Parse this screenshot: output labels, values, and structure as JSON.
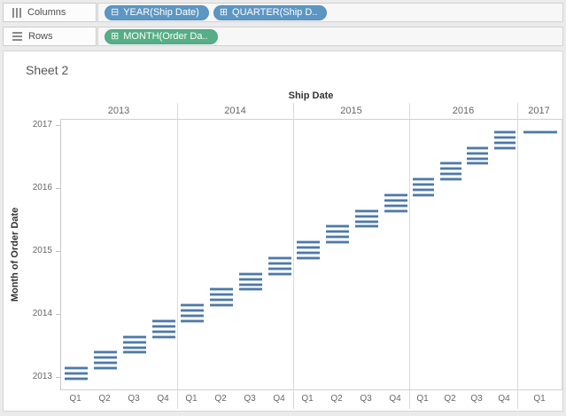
{
  "shelves": {
    "columns": {
      "label": "Columns",
      "pills": [
        {
          "label": "YEAR(Ship Date)",
          "icon_glyph": "⊟",
          "icon": "collapse-icon",
          "color": "#5d96c2"
        },
        {
          "label": "QUARTER(Ship D..",
          "icon_glyph": "⊞",
          "icon": "expand-icon",
          "color": "#5d96c2"
        }
      ]
    },
    "rows": {
      "label": "Rows",
      "pills": [
        {
          "label": "MONTH(Order Da..",
          "icon_glyph": "⊞",
          "icon": "expand-icon",
          "color": "#56ae87"
        }
      ]
    }
  },
  "sheet": {
    "title": "Sheet 2"
  },
  "chart_data": {
    "type": "gantt",
    "title": "Sheet 2",
    "col_axis_title": "Ship Date",
    "ylabel": "Month of Order Date",
    "years": [
      "2013",
      "2014",
      "2015",
      "2016",
      "2017"
    ],
    "y_tick_labels": [
      "2017",
      "2016",
      "2015",
      "2014",
      "2013"
    ],
    "y_axis_range": [
      "2013-01",
      "2017-01"
    ],
    "mark_color": "#4e79a7",
    "grid": "year column dividers only, no horizontal gridlines",
    "columns": [
      {
        "year": "2013",
        "quarter": "Q1",
        "order_months": [
          "2013-01",
          "2013-02",
          "2013-03"
        ]
      },
      {
        "year": "2013",
        "quarter": "Q2",
        "order_months": [
          "2013-03",
          "2013-04",
          "2013-05",
          "2013-06"
        ]
      },
      {
        "year": "2013",
        "quarter": "Q3",
        "order_months": [
          "2013-06",
          "2013-07",
          "2013-08",
          "2013-09"
        ]
      },
      {
        "year": "2013",
        "quarter": "Q4",
        "order_months": [
          "2013-09",
          "2013-10",
          "2013-11",
          "2013-12"
        ]
      },
      {
        "year": "2014",
        "quarter": "Q1",
        "order_months": [
          "2013-12",
          "2014-01",
          "2014-02",
          "2014-03"
        ]
      },
      {
        "year": "2014",
        "quarter": "Q2",
        "order_months": [
          "2014-03",
          "2014-04",
          "2014-05",
          "2014-06"
        ]
      },
      {
        "year": "2014",
        "quarter": "Q3",
        "order_months": [
          "2014-06",
          "2014-07",
          "2014-08",
          "2014-09"
        ]
      },
      {
        "year": "2014",
        "quarter": "Q4",
        "order_months": [
          "2014-09",
          "2014-10",
          "2014-11",
          "2014-12"
        ]
      },
      {
        "year": "2015",
        "quarter": "Q1",
        "order_months": [
          "2014-12",
          "2015-01",
          "2015-02",
          "2015-03"
        ]
      },
      {
        "year": "2015",
        "quarter": "Q2",
        "order_months": [
          "2015-03",
          "2015-04",
          "2015-05",
          "2015-06"
        ]
      },
      {
        "year": "2015",
        "quarter": "Q3",
        "order_months": [
          "2015-06",
          "2015-07",
          "2015-08",
          "2015-09"
        ]
      },
      {
        "year": "2015",
        "quarter": "Q4",
        "order_months": [
          "2015-09",
          "2015-10",
          "2015-11",
          "2015-12"
        ]
      },
      {
        "year": "2016",
        "quarter": "Q1",
        "order_months": [
          "2015-12",
          "2016-01",
          "2016-02",
          "2016-03"
        ]
      },
      {
        "year": "2016",
        "quarter": "Q2",
        "order_months": [
          "2016-03",
          "2016-04",
          "2016-05",
          "2016-06"
        ]
      },
      {
        "year": "2016",
        "quarter": "Q3",
        "order_months": [
          "2016-06",
          "2016-07",
          "2016-08",
          "2016-09"
        ]
      },
      {
        "year": "2016",
        "quarter": "Q4",
        "order_months": [
          "2016-09",
          "2016-10",
          "2016-11",
          "2016-12"
        ]
      },
      {
        "year": "2017",
        "quarter": "Q1",
        "order_months": [
          "2016-12"
        ]
      }
    ]
  }
}
